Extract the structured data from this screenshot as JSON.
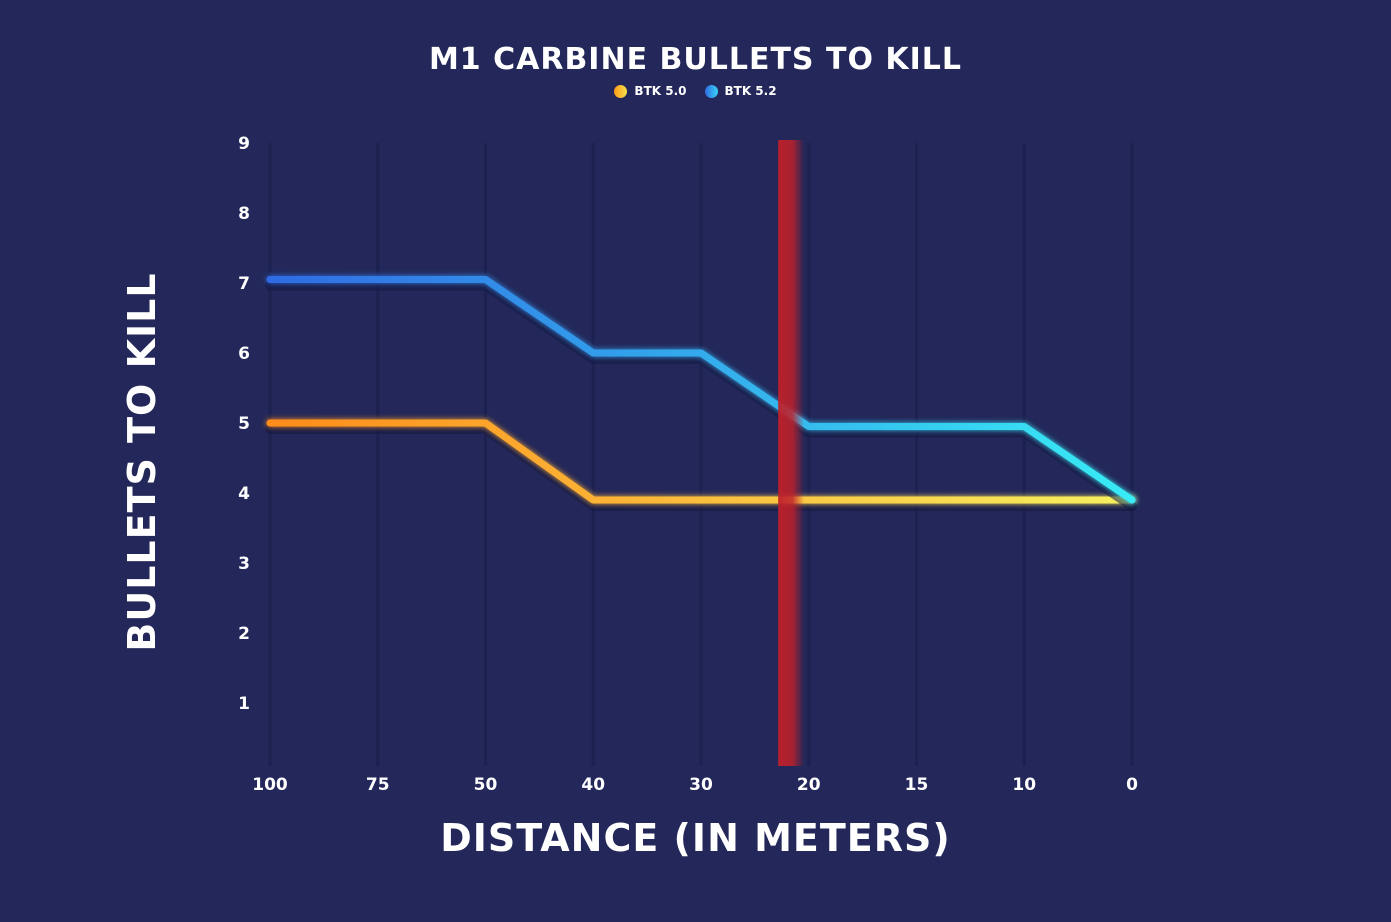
{
  "chart_data": {
    "type": "line",
    "title": "M1 CARBINE BULLETS TO KILL",
    "xlabel": "DISTANCE (IN METERS)",
    "ylabel": "BULLETS TO KILL",
    "categories": [
      "100",
      "75",
      "50",
      "40",
      "30",
      "20",
      "15",
      "10",
      "0"
    ],
    "yticks": [
      "1",
      "2",
      "3",
      "4",
      "5",
      "6",
      "7",
      "8",
      "9"
    ],
    "ylim": [
      0,
      9
    ],
    "series": [
      {
        "name": "BTK 5.0",
        "values": [
          5,
          5,
          5,
          3.9,
          3.9,
          3.9,
          3.9,
          3.9,
          3.9
        ],
        "color_start": "#ff8c1a",
        "color_end": "#f6f060"
      },
      {
        "name": "BTK 5.2",
        "values": [
          7.05,
          7.05,
          7.05,
          6,
          6,
          4.95,
          4.95,
          4.95,
          3.9
        ],
        "color_start": "#2f6be3",
        "color_end": "#38ecf5"
      }
    ],
    "marker_line": {
      "position_between": [
        "30",
        "20"
      ],
      "fraction": 0.8,
      "color": "#c0202a"
    },
    "grid": "vertical",
    "legend_position": "top-center"
  }
}
